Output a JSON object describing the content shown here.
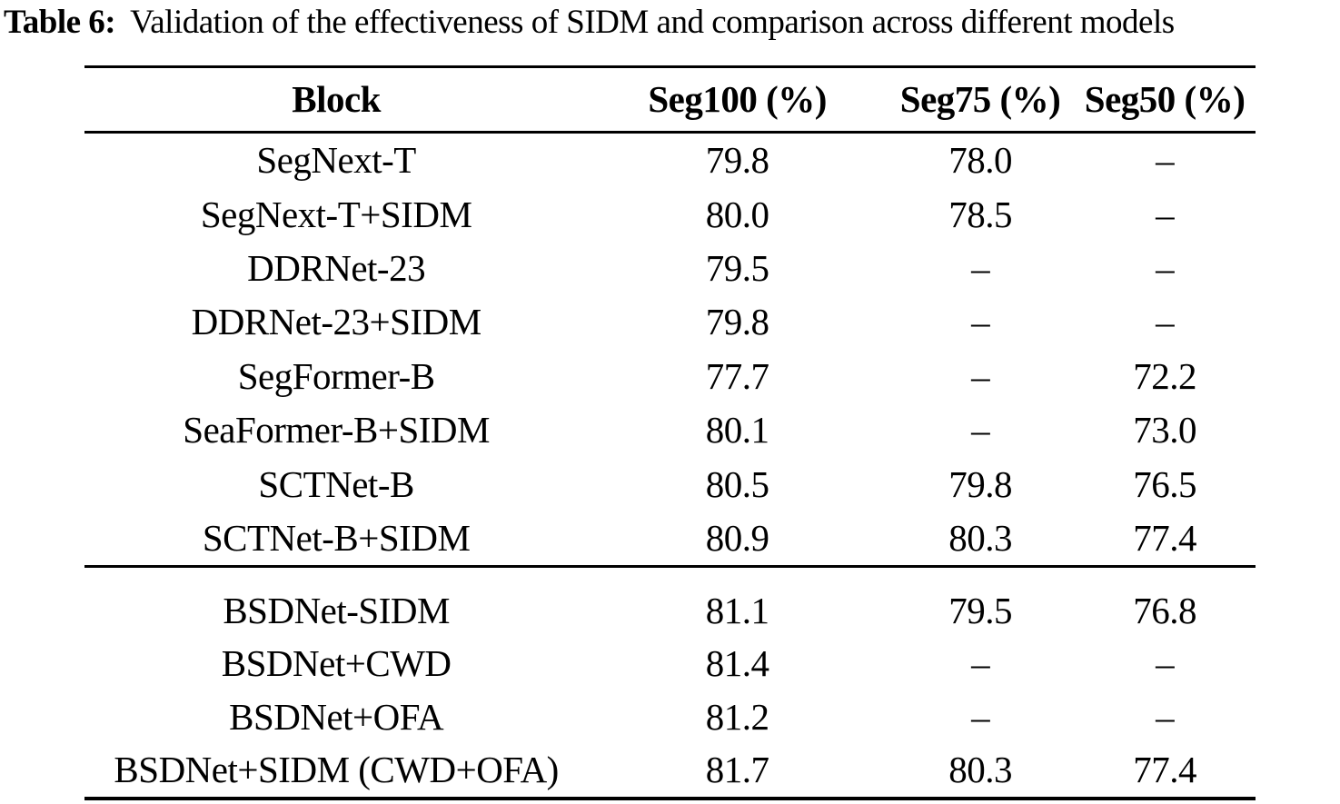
{
  "caption": {
    "label": "Table 6:",
    "text": "Validation of the effectiveness of SIDM and comparison across different models"
  },
  "colors": {
    "text": "#000000",
    "background": "#ffffff",
    "rule": "#000000"
  },
  "table": {
    "columns": [
      "Block",
      "Seg100 (%)",
      "Seg75 (%)",
      "Seg50 (%)"
    ],
    "groups": [
      {
        "rows": [
          {
            "block": "SegNext-T",
            "seg100": "79.8",
            "seg75": "78.0",
            "seg50": "–"
          },
          {
            "block": "SegNext-T+SIDM",
            "seg100": "80.0",
            "seg75": "78.5",
            "seg50": "–"
          },
          {
            "block": "DDRNet-23",
            "seg100": "79.5",
            "seg75": "–",
            "seg50": "–"
          },
          {
            "block": "DDRNet-23+SIDM",
            "seg100": "79.8",
            "seg75": "–",
            "seg50": "–"
          },
          {
            "block": "SegFormer-B",
            "seg100": "77.7",
            "seg75": "–",
            "seg50": "72.2"
          },
          {
            "block": "SeaFormer-B+SIDM",
            "seg100": "80.1",
            "seg75": "–",
            "seg50": "73.0"
          },
          {
            "block": "SCTNet-B",
            "seg100": "80.5",
            "seg75": "79.8",
            "seg50": "76.5"
          },
          {
            "block": "SCTNet-B+SIDM",
            "seg100": "80.9",
            "seg75": "80.3",
            "seg50": "77.4"
          }
        ]
      },
      {
        "rows": [
          {
            "block": "BSDNet-SIDM",
            "seg100": "81.1",
            "seg75": "79.5",
            "seg50": "76.8"
          },
          {
            "block": "BSDNet+CWD",
            "seg100": "81.4",
            "seg75": "–",
            "seg50": "–"
          },
          {
            "block": "BSDNet+OFA",
            "seg100": "81.2",
            "seg75": "–",
            "seg50": "–"
          },
          {
            "block": "BSDNet+SIDM (CWD+OFA)",
            "seg100": "81.7",
            "seg75": "80.3",
            "seg50": "77.4"
          }
        ]
      }
    ]
  }
}
